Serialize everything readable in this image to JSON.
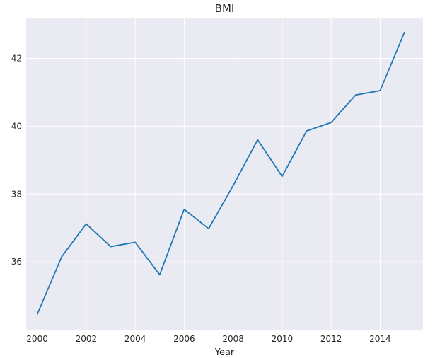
{
  "chart_data": {
    "type": "line",
    "title": "BMI",
    "xlabel": "Year",
    "ylabel": "",
    "xlim": [
      1999.55,
      2015.75
    ],
    "ylim": [
      34.0,
      43.2
    ],
    "xticks": [
      2000,
      2002,
      2004,
      2006,
      2008,
      2010,
      2012,
      2014
    ],
    "yticks": [
      36,
      38,
      40,
      42
    ],
    "grid": true,
    "legend": "none",
    "colors": {
      "background": "#eaeaf2",
      "grid": "#ffffff",
      "line": "#1f77b4"
    },
    "series": [
      {
        "x": [
          2000,
          2001,
          2002,
          2003,
          2004,
          2005,
          2006,
          2007,
          2008,
          2009,
          2010,
          2011,
          2012,
          2013,
          2014,
          2015
        ],
        "values": [
          34.45,
          36.15,
          37.12,
          36.45,
          36.58,
          35.62,
          37.55,
          36.98,
          38.25,
          39.6,
          38.52,
          39.86,
          40.11,
          40.92,
          41.05,
          42.78
        ]
      }
    ]
  }
}
